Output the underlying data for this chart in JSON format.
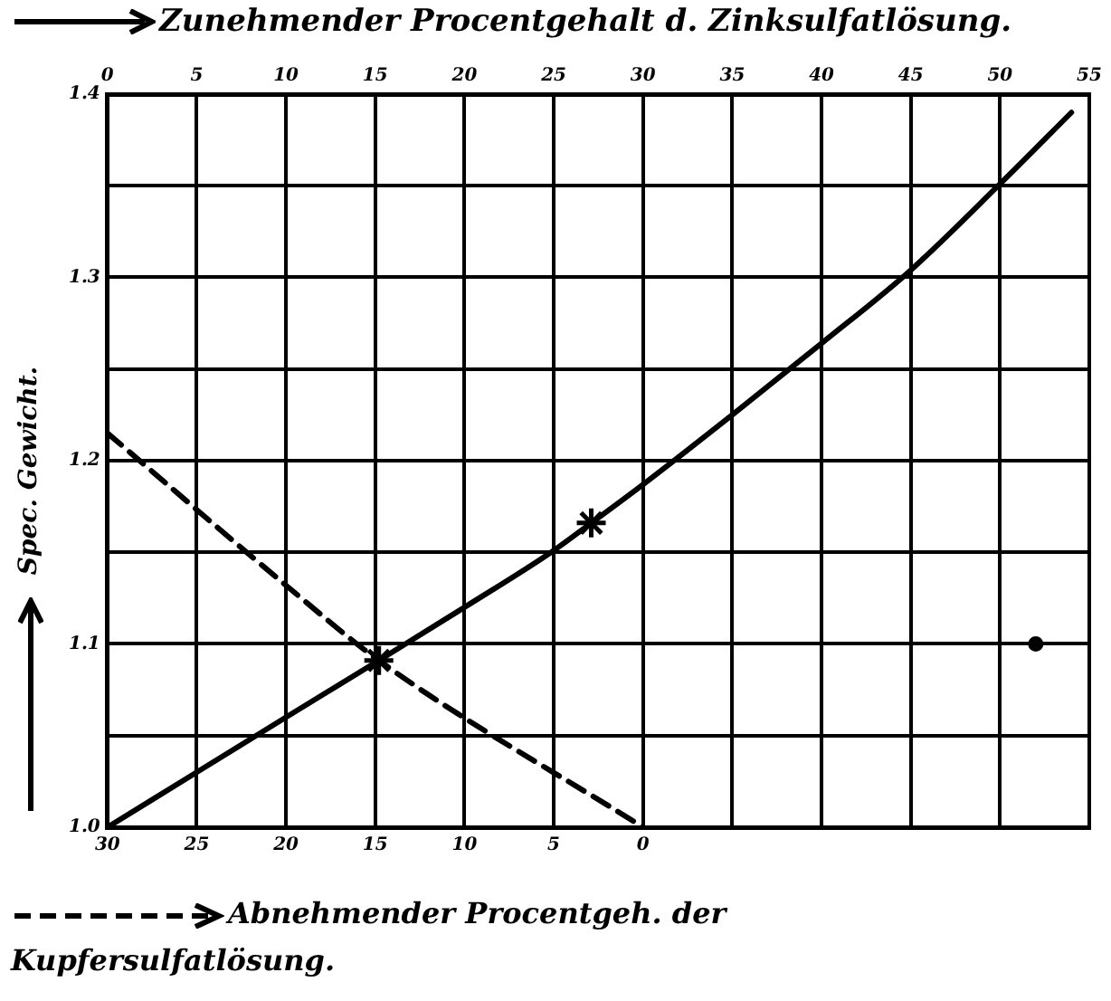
{
  "chart_data": {
    "type": "line",
    "x2label": "Zunehmender Procentgehalt d. Zinksulfatlösung.",
    "xlabel": "Abnehmender Procentgeh. der Kupfersulfatlösung.",
    "ylabel": "Spec. Gewicht.",
    "x2lim": [
      0,
      55
    ],
    "x2ticks": [
      0,
      5,
      10,
      15,
      20,
      25,
      30,
      35,
      40,
      45,
      50,
      55
    ],
    "xlim": [
      30,
      -25
    ],
    "xticks": [
      30,
      25,
      20,
      15,
      10,
      5,
      0
    ],
    "ylim": [
      1.0,
      1.4
    ],
    "yticks": [
      {
        "value": 1.0,
        "label": "1.0"
      },
      {
        "value": 1.05,
        "label": null
      },
      {
        "value": 1.1,
        "label": "1.1"
      },
      {
        "value": 1.15,
        "label": null
      },
      {
        "value": 1.2,
        "label": "1.2"
      },
      {
        "value": 1.25,
        "label": null
      },
      {
        "value": 1.3,
        "label": "1.3"
      },
      {
        "value": 1.35,
        "label": null
      },
      {
        "value": 1.4,
        "label": "1.4"
      }
    ],
    "grid": true,
    "legend": false,
    "series": [
      {
        "axis": "x2",
        "color": "#000000",
        "line_style": "solid",
        "marker": "none",
        "x": [
          0,
          5,
          10,
          15.2,
          20,
          25,
          27.1,
          30,
          35,
          40,
          45,
          50,
          54
        ],
        "values": [
          1.0,
          1.03,
          1.06,
          1.091,
          1.12,
          1.151,
          1.166,
          1.187,
          1.225,
          1.264,
          1.304,
          1.351,
          1.39
        ]
      },
      {
        "color": "#000000",
        "line_style": "dashed",
        "marker": "none",
        "x": [
          30,
          20,
          14.8,
          0
        ],
        "values": [
          1.215,
          1.132,
          1.091,
          1.0
        ]
      },
      {
        "type": "scatter",
        "axis": "x2",
        "color": "#000000",
        "marker": "cross",
        "x": [
          15.2,
          27.1
        ],
        "values": [
          1.091,
          1.166
        ]
      },
      {
        "type": "scatter",
        "axis": "x2",
        "color": "#000000",
        "marker": "circle",
        "x": [
          52
        ],
        "values": [
          1.1
        ]
      }
    ]
  }
}
